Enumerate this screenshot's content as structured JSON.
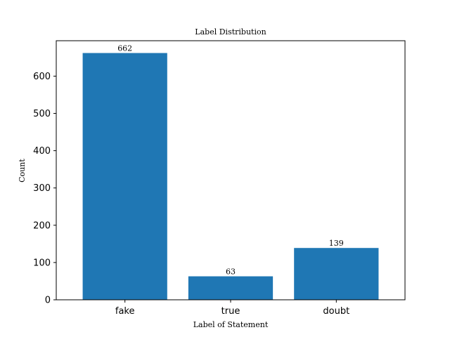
{
  "chart_data": {
    "type": "bar",
    "title": "Label Distribution",
    "xlabel": "Label of Statement",
    "ylabel": "Count",
    "categories": [
      "fake",
      "true",
      "doubt"
    ],
    "values": [
      662,
      63,
      139
    ],
    "data_labels": [
      "662",
      "63",
      "139"
    ],
    "ylim": [
      0,
      695
    ],
    "yticks": [
      0,
      100,
      200,
      300,
      400,
      500,
      600
    ],
    "grid": false,
    "bar_color": "#1f77b4"
  }
}
